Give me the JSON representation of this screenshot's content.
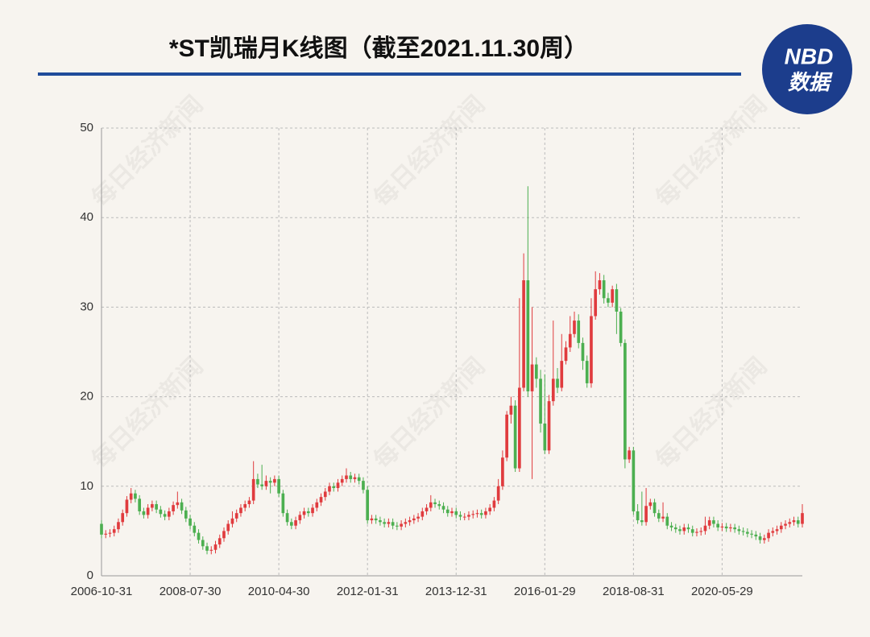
{
  "chart_data": {
    "type": "candlestick",
    "title": "*ST凯瑞月K线图（截至2021.11.30周）",
    "logo": {
      "line1": "NBD",
      "line2": "数据"
    },
    "watermark": "每日经济新闻",
    "up_color": "#e03b3e",
    "down_color": "#4caf50",
    "title_rule_color": "#1f4c9a",
    "grid": true,
    "ylim": [
      0,
      50
    ],
    "yticks": [
      0,
      10,
      20,
      30,
      40,
      50
    ],
    "categories": [
      "2006-10-31",
      null,
      null,
      null,
      null,
      null,
      null,
      null,
      null,
      null,
      null,
      null,
      null,
      null,
      null,
      null,
      null,
      null,
      null,
      null,
      null,
      "2008-07-30",
      null,
      null,
      null,
      null,
      null,
      null,
      null,
      null,
      null,
      null,
      null,
      null,
      null,
      null,
      null,
      null,
      null,
      null,
      null,
      null,
      "2010-04-30",
      null,
      null,
      null,
      null,
      null,
      null,
      null,
      null,
      null,
      null,
      null,
      null,
      null,
      null,
      null,
      null,
      null,
      null,
      null,
      null,
      "2012-01-31",
      null,
      null,
      null,
      null,
      null,
      null,
      null,
      null,
      null,
      null,
      null,
      null,
      null,
      null,
      null,
      null,
      null,
      null,
      null,
      null,
      "2013-12-31",
      null,
      null,
      null,
      null,
      null,
      null,
      null,
      null,
      null,
      null,
      null,
      null,
      null,
      null,
      null,
      null,
      null,
      null,
      null,
      null,
      "2016-01-29",
      null,
      null,
      null,
      null,
      null,
      null,
      null,
      null,
      null,
      null,
      null,
      null,
      null,
      null,
      null,
      null,
      null,
      null,
      null,
      null,
      "2018-08-31",
      null,
      null,
      null,
      null,
      null,
      null,
      null,
      null,
      null,
      null,
      null,
      null,
      null,
      null,
      null,
      null,
      null,
      null,
      null,
      null,
      "2020-05-29",
      null,
      null,
      null,
      null,
      null,
      null,
      null,
      null,
      null,
      null,
      null,
      null,
      null,
      null,
      null,
      null,
      null,
      null,
      null
    ],
    "open": [
      5.8,
      4.6,
      4.7,
      4.8,
      5.2,
      6.0,
      7.0,
      8.5,
      9.2,
      8.6,
      7.2,
      6.8,
      7.6,
      8.0,
      7.4,
      6.9,
      6.6,
      7.2,
      7.9,
      8.2,
      7.3,
      6.4,
      5.6,
      4.8,
      4.0,
      3.3,
      2.8,
      2.9,
      3.5,
      4.2,
      5.0,
      5.8,
      6.4,
      7.0,
      7.6,
      8.0,
      8.4,
      10.8,
      10.2,
      10.0,
      10.6,
      10.4,
      10.8,
      9.2,
      7.0,
      6.0,
      5.6,
      6.2,
      6.8,
      7.2,
      7.0,
      7.6,
      8.2,
      8.8,
      9.4,
      10.0,
      9.8,
      10.4,
      10.8,
      11.2,
      10.8,
      11.0,
      10.6,
      9.6,
      6.2,
      6.4,
      6.2,
      6.0,
      5.8,
      6.0,
      5.6,
      5.5,
      5.8,
      6.0,
      6.2,
      6.4,
      6.6,
      7.2,
      7.6,
      8.2,
      8.0,
      7.8,
      7.4,
      7.0,
      7.2,
      6.8,
      6.6,
      6.6,
      6.8,
      6.9,
      7.0,
      6.8,
      7.2,
      7.6,
      8.4,
      10.0,
      13.2,
      18.0,
      19.0,
      12.0,
      21.0,
      33.0,
      20.6,
      23.6,
      22.0,
      17.0,
      14.0,
      19.5,
      22.0,
      21.0,
      24.0,
      25.5,
      27.0,
      28.5,
      26.0,
      24.0,
      21.5,
      29.0,
      32.0,
      33.0,
      31.0,
      30.5,
      32.0,
      29.5,
      26.0,
      13.0,
      14.0,
      7.2,
      6.2,
      6.0,
      7.8,
      8.2,
      7.0,
      6.4,
      6.6,
      5.6,
      5.4,
      5.2,
      5.0,
      5.4,
      5.2,
      4.8,
      4.9,
      5.0,
      5.6,
      6.2,
      5.8,
      5.4,
      5.5,
      5.3,
      5.4,
      5.2,
      5.0,
      4.9,
      4.7,
      4.6,
      4.4,
      4.0,
      4.2,
      4.8,
      5.0,
      5.2,
      5.6,
      5.8,
      6.0,
      6.2,
      5.8
    ],
    "high": [
      6.2,
      5.1,
      5.2,
      5.6,
      6.4,
      7.4,
      8.9,
      9.8,
      9.6,
      9.0,
      7.6,
      8.0,
      8.4,
      8.4,
      7.8,
      7.3,
      7.6,
      8.3,
      9.4,
      8.6,
      7.7,
      6.8,
      6.0,
      5.2,
      4.4,
      3.7,
      3.3,
      3.9,
      4.6,
      5.4,
      6.2,
      7.2,
      7.4,
      8.0,
      8.4,
      8.8,
      12.8,
      11.4,
      12.4,
      11.2,
      11.0,
      11.2,
      11.2,
      9.6,
      7.4,
      6.4,
      6.6,
      7.2,
      7.6,
      7.6,
      8.0,
      8.6,
      9.2,
      9.8,
      10.4,
      10.4,
      10.8,
      11.2,
      12.0,
      11.6,
      11.4,
      11.4,
      11.0,
      10.0,
      6.8,
      6.8,
      6.6,
      6.4,
      6.4,
      6.4,
      6.0,
      6.2,
      6.4,
      6.6,
      6.8,
      7.0,
      7.6,
      8.0,
      9.0,
      8.6,
      8.4,
      8.2,
      7.8,
      7.6,
      7.6,
      7.2,
      7.0,
      7.2,
      7.3,
      7.4,
      7.4,
      7.6,
      8.0,
      8.8,
      10.8,
      14.0,
      18.4,
      20.0,
      19.6,
      31.0,
      36.0,
      43.5,
      30.0,
      24.4,
      23.0,
      22.5,
      20.2,
      28.5,
      23.2,
      27.0,
      26.2,
      29.0,
      29.5,
      29.2,
      26.6,
      24.6,
      31.0,
      34.0,
      33.8,
      33.6,
      31.6,
      32.4,
      32.6,
      29.9,
      26.4,
      14.4,
      14.4,
      8.0,
      9.4,
      9.8,
      8.6,
      8.6,
      7.4,
      8.2,
      7.0,
      6.0,
      5.8,
      5.6,
      5.8,
      5.8,
      5.6,
      5.3,
      5.4,
      6.6,
      6.6,
      6.6,
      6.2,
      5.9,
      5.9,
      5.8,
      5.8,
      5.6,
      5.4,
      5.3,
      5.1,
      5.0,
      4.8,
      4.6,
      5.2,
      5.4,
      5.6,
      6.0,
      6.2,
      6.4,
      6.6,
      6.6,
      8.0
    ],
    "low": [
      4.2,
      4.2,
      4.3,
      4.4,
      4.8,
      5.6,
      6.6,
      8.1,
      8.2,
      6.8,
      6.4,
      6.4,
      7.2,
      7.0,
      6.5,
      6.2,
      6.2,
      6.8,
      7.5,
      6.9,
      6.0,
      5.2,
      4.4,
      3.6,
      2.9,
      2.4,
      2.4,
      2.5,
      3.1,
      3.8,
      4.6,
      5.4,
      6.0,
      6.6,
      7.2,
      7.6,
      8.0,
      9.8,
      9.6,
      9.6,
      9.2,
      10.0,
      8.8,
      6.6,
      5.6,
      5.2,
      5.2,
      5.8,
      6.4,
      6.6,
      6.6,
      7.2,
      7.8,
      8.4,
      9.0,
      9.4,
      9.4,
      10.0,
      10.4,
      10.4,
      10.4,
      10.2,
      9.2,
      5.8,
      5.8,
      5.8,
      5.6,
      5.4,
      5.4,
      5.2,
      5.1,
      5.1,
      5.4,
      5.6,
      5.8,
      6.0,
      6.2,
      6.8,
      7.2,
      7.6,
      7.4,
      7.0,
      6.6,
      6.6,
      6.4,
      6.2,
      6.2,
      6.2,
      6.4,
      6.5,
      6.4,
      6.4,
      6.8,
      7.2,
      8.0,
      9.6,
      12.8,
      17.0,
      11.6,
      11.6,
      20.6,
      20.0,
      10.8,
      21.0,
      16.0,
      13.6,
      13.6,
      19.0,
      20.4,
      20.6,
      23.6,
      25.0,
      26.6,
      25.4,
      23.0,
      21.0,
      21.0,
      28.6,
      31.4,
      30.4,
      30.0,
      30.0,
      27.0,
      25.6,
      12.0,
      12.6,
      6.8,
      5.8,
      5.6,
      5.6,
      7.4,
      6.6,
      6.0,
      6.0,
      5.2,
      5.0,
      4.8,
      4.6,
      4.6,
      4.8,
      4.4,
      4.4,
      4.5,
      4.6,
      5.2,
      5.4,
      5.0,
      5.0,
      4.9,
      4.9,
      4.8,
      4.6,
      4.5,
      4.3,
      4.2,
      4.0,
      3.6,
      3.6,
      3.8,
      4.4,
      4.6,
      4.8,
      5.2,
      5.4,
      5.6,
      5.4,
      5.4
    ],
    "close": [
      4.6,
      4.7,
      4.8,
      5.2,
      6.0,
      7.0,
      8.5,
      9.2,
      8.6,
      7.2,
      6.8,
      7.6,
      8.0,
      7.4,
      6.9,
      6.6,
      7.2,
      7.9,
      8.2,
      7.3,
      6.4,
      5.6,
      4.8,
      4.0,
      3.3,
      2.8,
      2.9,
      3.5,
      4.2,
      5.0,
      5.8,
      6.4,
      7.0,
      7.6,
      8.0,
      8.4,
      10.8,
      10.2,
      10.0,
      10.6,
      10.4,
      10.8,
      9.2,
      7.0,
      6.0,
      5.6,
      6.2,
      6.8,
      7.2,
      7.0,
      7.6,
      8.2,
      8.8,
      9.4,
      10.0,
      9.8,
      10.4,
      10.8,
      11.2,
      10.8,
      11.0,
      10.6,
      9.6,
      6.2,
      6.4,
      6.2,
      6.0,
      5.8,
      6.0,
      5.6,
      5.5,
      5.8,
      6.0,
      6.2,
      6.4,
      6.6,
      7.2,
      7.6,
      8.2,
      8.0,
      7.8,
      7.4,
      7.0,
      7.2,
      6.8,
      6.6,
      6.6,
      6.8,
      6.9,
      7.0,
      6.8,
      7.2,
      7.6,
      8.4,
      10.0,
      13.2,
      18.0,
      19.0,
      12.0,
      21.0,
      33.0,
      20.6,
      23.6,
      22.0,
      17.0,
      14.0,
      19.5,
      22.0,
      21.0,
      24.0,
      25.5,
      27.0,
      28.5,
      26.0,
      24.0,
      21.5,
      29.0,
      32.0,
      33.0,
      31.0,
      30.5,
      32.0,
      29.5,
      26.0,
      13.0,
      14.0,
      7.2,
      6.2,
      6.0,
      7.8,
      8.2,
      7.0,
      6.4,
      6.6,
      5.6,
      5.4,
      5.2,
      5.0,
      5.4,
      5.2,
      4.8,
      4.9,
      5.0,
      5.6,
      6.2,
      5.8,
      5.4,
      5.5,
      5.3,
      5.4,
      5.2,
      5.0,
      4.9,
      4.7,
      4.6,
      4.4,
      4.0,
      4.2,
      4.8,
      5.0,
      5.2,
      5.6,
      5.8,
      6.0,
      6.2,
      5.8,
      7.0
    ]
  }
}
